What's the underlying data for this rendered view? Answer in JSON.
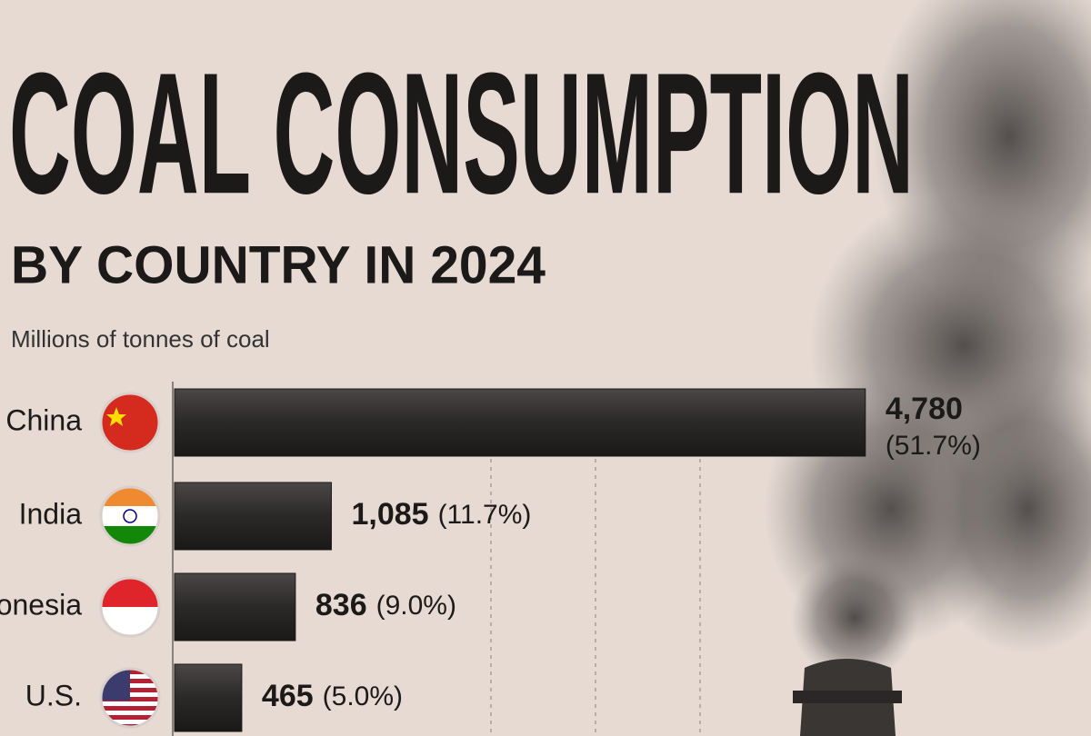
{
  "chart_data": {
    "type": "barh",
    "title": "COAL CONSUMPTION",
    "subtitle": "BY COUNTRY IN 2024",
    "unit_label": "Millions of tonnes of coal",
    "categories": [
      "China",
      "India",
      "Indonesia",
      "U.S."
    ],
    "values": [
      4780,
      1085,
      836,
      465
    ],
    "value_labels": [
      "4,780",
      "1,085",
      "836",
      "465"
    ],
    "shares": [
      51.7,
      11.7,
      9.0,
      5.0
    ],
    "share_labels": [
      "(51.7%)",
      "(11.7%)",
      "(9.0%)",
      "(5.0%)"
    ],
    "xlim": [
      0,
      4800
    ],
    "color": "#2b2928"
  }
}
